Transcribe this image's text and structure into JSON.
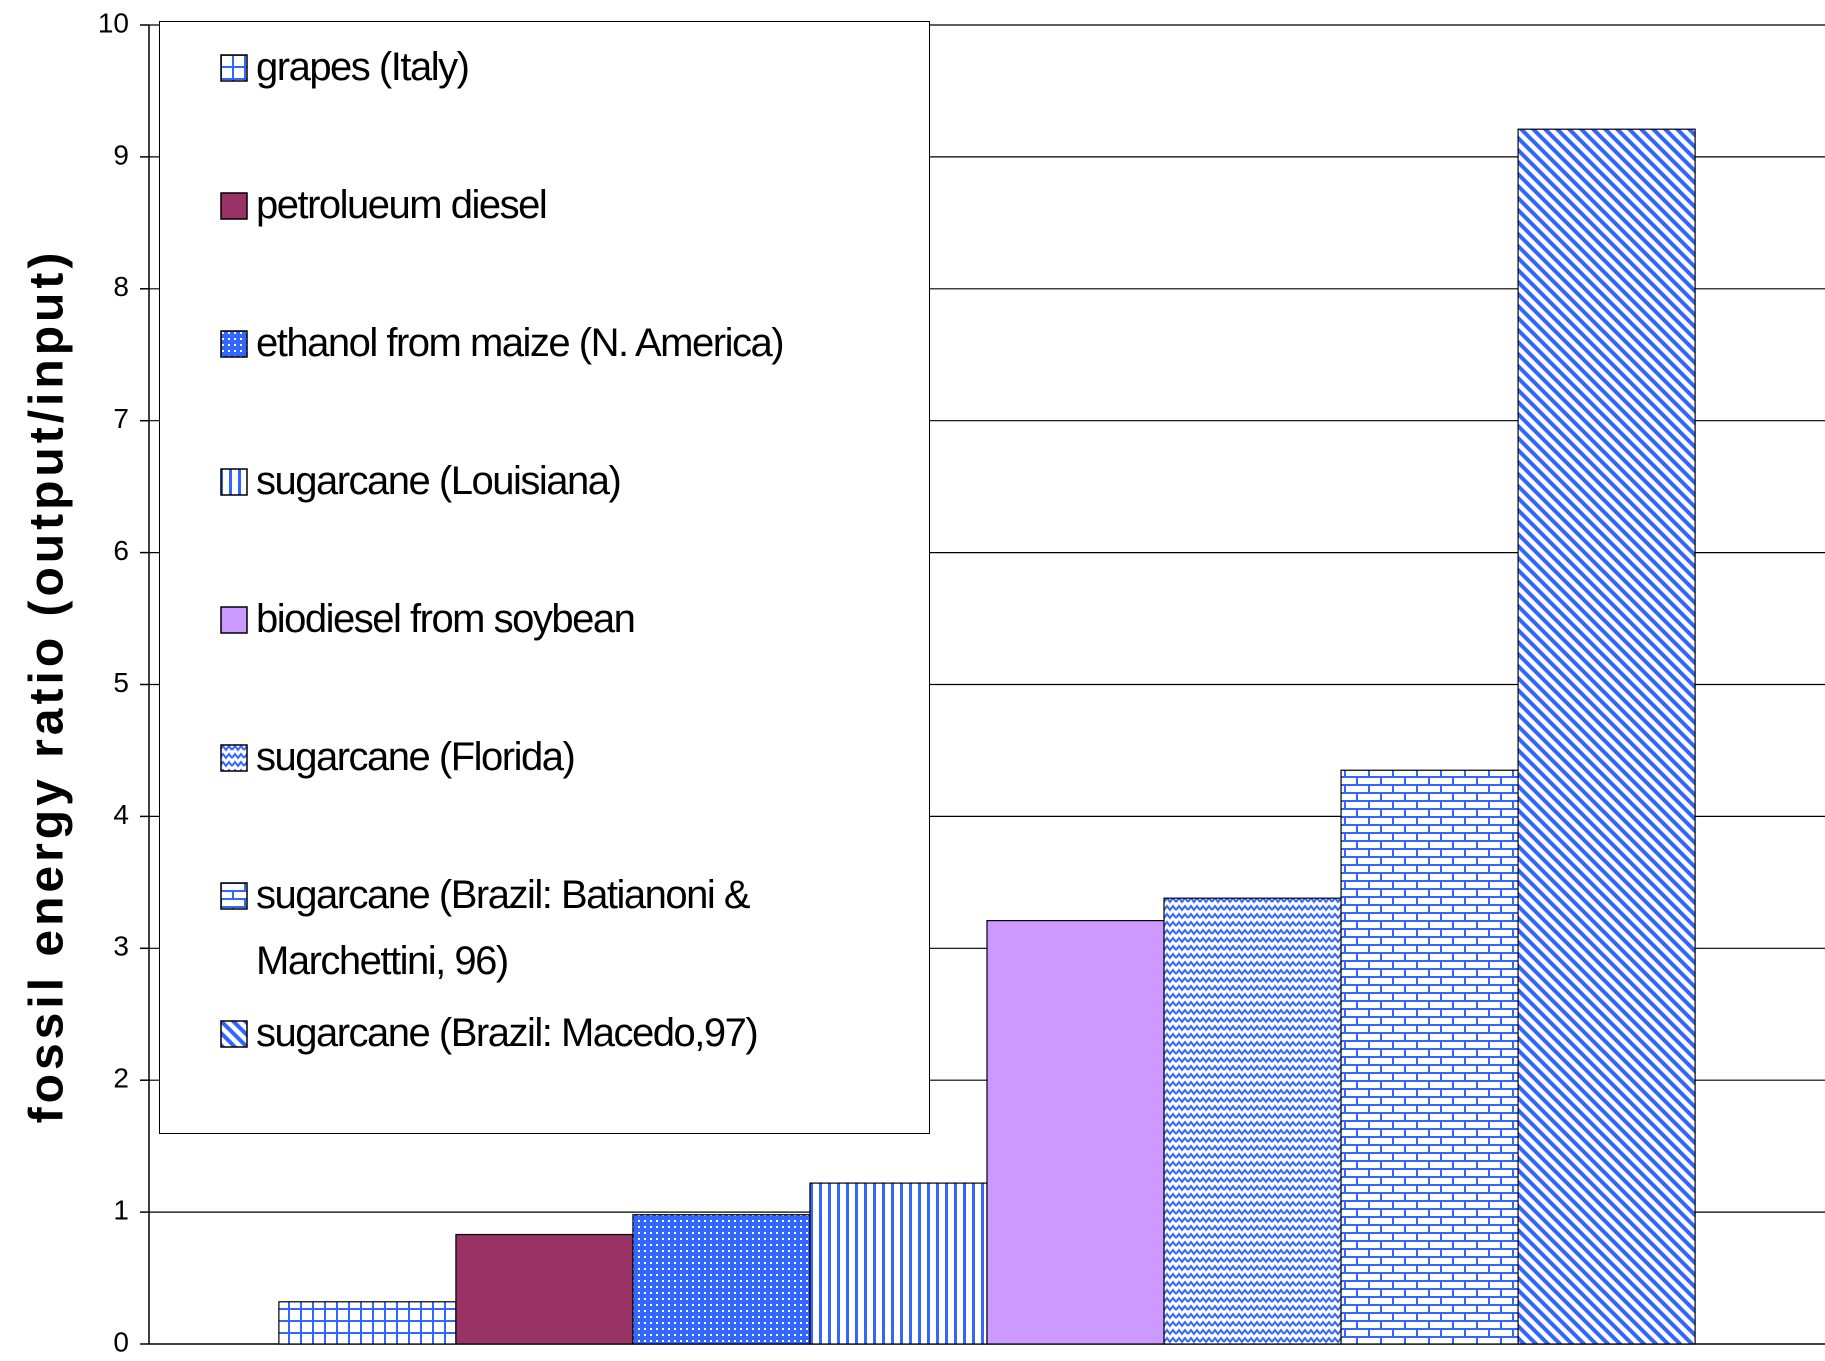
{
  "chart_data": {
    "type": "bar",
    "y_label": "fossil energy ratio (output/input)",
    "categories": [
      null
    ],
    "series": [
      {
        "name": "grapes (Italy)",
        "color": "#3366ff",
        "pattern": "grid",
        "values": [
          0.32
        ]
      },
      {
        "name": "petrolueum diesel",
        "color": "#993366",
        "pattern": "solid",
        "values": [
          0.83
        ]
      },
      {
        "name": "ethanol from maize (N. America)",
        "color": "#3366ff",
        "pattern": "dots",
        "values": [
          0.98
        ]
      },
      {
        "name": "sugarcane (Louisiana)",
        "color": "#3366ff",
        "pattern": "vertical",
        "values": [
          1.22
        ]
      },
      {
        "name": "biodiesel from soybean",
        "color": "#cc99ff",
        "pattern": "solid",
        "values": [
          3.21
        ]
      },
      {
        "name": "sugarcane (Florida)",
        "color": "#3366ff",
        "pattern": "waves",
        "values": [
          3.38
        ]
      },
      {
        "name": "sugarcane (Brazil: Batianoni & Marchettini, 96)",
        "color": "#3366ff",
        "pattern": "brick",
        "values": [
          4.35
        ]
      },
      {
        "name": "sugarcane (Brazil: Macedo,97)",
        "color": "#3366ff",
        "pattern": "diagonal",
        "values": [
          9.21
        ]
      }
    ],
    "ylim": [
      0,
      10
    ],
    "yticks": [
      0,
      1,
      2,
      3,
      4,
      5,
      6,
      7,
      8,
      9,
      10
    ],
    "grid": true,
    "legend": "upper-left"
  }
}
